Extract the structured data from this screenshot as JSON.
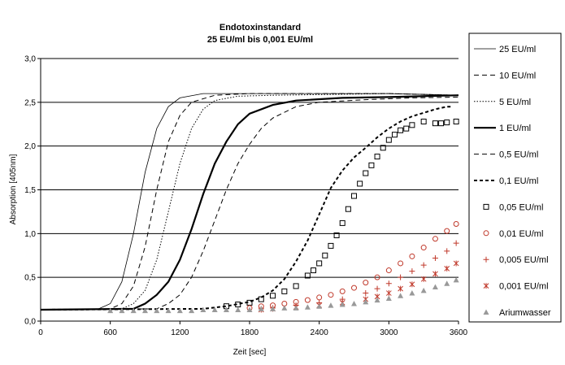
{
  "chart_data": {
    "type": "line",
    "title": "Endotoxinstandard",
    "subtitle": "25 EU/ml bis 0,001 EU/ml",
    "xlabel": "Zeit [sec]",
    "ylabel": "Absorption [405nm]",
    "xlim": [
      0,
      3600
    ],
    "ylim": [
      0,
      3.0
    ],
    "x_ticks": [
      "0",
      "600",
      "1200",
      "1800",
      "2400",
      "3000",
      "3600"
    ],
    "y_ticks": [
      "0,0",
      "0,5",
      "1,0",
      "1,5",
      "2,0",
      "2,5",
      "3,0"
    ],
    "grid": "horizontal",
    "legend_position": "right",
    "series": [
      {
        "name": "25 EU/ml",
        "style": "solid-thin",
        "points": [
          [
            0,
            0.13
          ],
          [
            500,
            0.14
          ],
          [
            600,
            0.2
          ],
          [
            700,
            0.45
          ],
          [
            800,
            1.0
          ],
          [
            900,
            1.7
          ],
          [
            1000,
            2.2
          ],
          [
            1100,
            2.45
          ],
          [
            1200,
            2.55
          ],
          [
            1400,
            2.6
          ],
          [
            1800,
            2.6
          ],
          [
            2400,
            2.6
          ],
          [
            3000,
            2.6
          ],
          [
            3600,
            2.58
          ]
        ]
      },
      {
        "name": "10 EU/ml",
        "style": "dash",
        "points": [
          [
            0,
            0.13
          ],
          [
            600,
            0.14
          ],
          [
            700,
            0.2
          ],
          [
            800,
            0.4
          ],
          [
            900,
            0.85
          ],
          [
            1000,
            1.5
          ],
          [
            1100,
            2.05
          ],
          [
            1200,
            2.35
          ],
          [
            1300,
            2.5
          ],
          [
            1500,
            2.58
          ],
          [
            1800,
            2.6
          ],
          [
            3000,
            2.6
          ],
          [
            3600,
            2.58
          ]
        ]
      },
      {
        "name": "5 EU/ml",
        "style": "dot",
        "points": [
          [
            0,
            0.13
          ],
          [
            700,
            0.14
          ],
          [
            800,
            0.2
          ],
          [
            900,
            0.35
          ],
          [
            1000,
            0.7
          ],
          [
            1100,
            1.25
          ],
          [
            1200,
            1.8
          ],
          [
            1300,
            2.2
          ],
          [
            1400,
            2.42
          ],
          [
            1500,
            2.52
          ],
          [
            1700,
            2.57
          ],
          [
            2000,
            2.58
          ],
          [
            3000,
            2.6
          ],
          [
            3600,
            2.58
          ]
        ]
      },
      {
        "name": "1 EU/ml",
        "style": "solid-thick",
        "points": [
          [
            0,
            0.13
          ],
          [
            800,
            0.14
          ],
          [
            900,
            0.2
          ],
          [
            1000,
            0.3
          ],
          [
            1100,
            0.45
          ],
          [
            1200,
            0.7
          ],
          [
            1300,
            1.05
          ],
          [
            1400,
            1.45
          ],
          [
            1500,
            1.8
          ],
          [
            1600,
            2.05
          ],
          [
            1700,
            2.25
          ],
          [
            1800,
            2.37
          ],
          [
            2000,
            2.47
          ],
          [
            2200,
            2.52
          ],
          [
            2600,
            2.55
          ],
          [
            3000,
            2.56
          ],
          [
            3600,
            2.58
          ]
        ]
      },
      {
        "name": "0,5 EU/ml",
        "style": "dash",
        "points": [
          [
            0,
            0.13
          ],
          [
            1000,
            0.14
          ],
          [
            1100,
            0.2
          ],
          [
            1200,
            0.3
          ],
          [
            1300,
            0.5
          ],
          [
            1400,
            0.8
          ],
          [
            1500,
            1.15
          ],
          [
            1600,
            1.5
          ],
          [
            1700,
            1.8
          ],
          [
            1800,
            2.02
          ],
          [
            1900,
            2.2
          ],
          [
            2000,
            2.32
          ],
          [
            2200,
            2.45
          ],
          [
            2400,
            2.5
          ],
          [
            2800,
            2.53
          ],
          [
            3200,
            2.55
          ],
          [
            3600,
            2.56
          ]
        ]
      },
      {
        "name": "0,1 EU/ml",
        "style": "dash-bold",
        "points": [
          [
            0,
            0.13
          ],
          [
            1400,
            0.14
          ],
          [
            1600,
            0.17
          ],
          [
            1800,
            0.22
          ],
          [
            1900,
            0.27
          ],
          [
            2000,
            0.35
          ],
          [
            2100,
            0.48
          ],
          [
            2200,
            0.68
          ],
          [
            2300,
            0.92
          ],
          [
            2400,
            1.22
          ],
          [
            2500,
            1.52
          ],
          [
            2600,
            1.72
          ],
          [
            2700,
            1.87
          ],
          [
            2800,
            1.98
          ],
          [
            2900,
            2.1
          ],
          [
            3000,
            2.2
          ],
          [
            3100,
            2.28
          ],
          [
            3200,
            2.34
          ],
          [
            3300,
            2.38
          ],
          [
            3400,
            2.42
          ],
          [
            3500,
            2.45
          ],
          [
            3550,
            2.45
          ]
        ]
      },
      {
        "name": "0,05 EU/ml",
        "marker": "open-square",
        "points": [
          [
            1600,
            0.17
          ],
          [
            1700,
            0.19
          ],
          [
            1800,
            0.21
          ],
          [
            1900,
            0.25
          ],
          [
            2000,
            0.29
          ],
          [
            2100,
            0.34
          ],
          [
            2200,
            0.4
          ],
          [
            2300,
            0.52
          ],
          [
            2350,
            0.58
          ],
          [
            2400,
            0.66
          ],
          [
            2450,
            0.75
          ],
          [
            2500,
            0.86
          ],
          [
            2550,
            0.98
          ],
          [
            2600,
            1.12
          ],
          [
            2650,
            1.28
          ],
          [
            2700,
            1.43
          ],
          [
            2750,
            1.57
          ],
          [
            2800,
            1.69
          ],
          [
            2850,
            1.78
          ],
          [
            2900,
            1.88
          ],
          [
            2950,
            1.98
          ],
          [
            3000,
            2.07
          ],
          [
            3050,
            2.13
          ],
          [
            3100,
            2.18
          ],
          [
            3150,
            2.2
          ],
          [
            3200,
            2.24
          ],
          [
            3300,
            2.28
          ],
          [
            3400,
            2.26
          ],
          [
            3450,
            2.26
          ],
          [
            3500,
            2.27
          ],
          [
            3580,
            2.28
          ]
        ]
      },
      {
        "name": "0,01 EU/ml",
        "marker": "open-circle",
        "points": [
          [
            1800,
            0.15
          ],
          [
            1900,
            0.17
          ],
          [
            2000,
            0.18
          ],
          [
            2100,
            0.2
          ],
          [
            2200,
            0.22
          ],
          [
            2300,
            0.24
          ],
          [
            2400,
            0.27
          ],
          [
            2500,
            0.3
          ],
          [
            2600,
            0.34
          ],
          [
            2700,
            0.38
          ],
          [
            2800,
            0.44
          ],
          [
            2900,
            0.5
          ],
          [
            3000,
            0.58
          ],
          [
            3100,
            0.66
          ],
          [
            3200,
            0.74
          ],
          [
            3300,
            0.84
          ],
          [
            3400,
            0.94
          ],
          [
            3500,
            1.03
          ],
          [
            3580,
            1.11
          ]
        ]
      },
      {
        "name": "0,005 EU/ml",
        "marker": "plus",
        "points": [
          [
            1900,
            0.14
          ],
          [
            2000,
            0.15
          ],
          [
            2200,
            0.18
          ],
          [
            2400,
            0.21
          ],
          [
            2600,
            0.25
          ],
          [
            2800,
            0.32
          ],
          [
            2900,
            0.37
          ],
          [
            3000,
            0.43
          ],
          [
            3100,
            0.5
          ],
          [
            3200,
            0.57
          ],
          [
            3300,
            0.64
          ],
          [
            3400,
            0.72
          ],
          [
            3500,
            0.8
          ],
          [
            3580,
            0.89
          ]
        ]
      },
      {
        "name": "0,001 EU/ml",
        "marker": "star",
        "points": [
          [
            1900,
            0.13
          ],
          [
            2000,
            0.14
          ],
          [
            2200,
            0.16
          ],
          [
            2400,
            0.18
          ],
          [
            2600,
            0.21
          ],
          [
            2800,
            0.25
          ],
          [
            2900,
            0.28
          ],
          [
            3000,
            0.32
          ],
          [
            3100,
            0.37
          ],
          [
            3200,
            0.42
          ],
          [
            3300,
            0.48
          ],
          [
            3400,
            0.54
          ],
          [
            3500,
            0.6
          ],
          [
            3580,
            0.66
          ]
        ]
      },
      {
        "name": "Ariumwasser",
        "marker": "filled-triangle",
        "points": [
          [
            600,
            0.12
          ],
          [
            700,
            0.12
          ],
          [
            800,
            0.12
          ],
          [
            900,
            0.12
          ],
          [
            1000,
            0.12
          ],
          [
            1100,
            0.12
          ],
          [
            1200,
            0.12
          ],
          [
            1300,
            0.12
          ],
          [
            1400,
            0.13
          ],
          [
            1500,
            0.13
          ],
          [
            1600,
            0.13
          ],
          [
            1700,
            0.13
          ],
          [
            1800,
            0.13
          ],
          [
            1900,
            0.14
          ],
          [
            2000,
            0.14
          ],
          [
            2100,
            0.15
          ],
          [
            2200,
            0.15
          ],
          [
            2300,
            0.16
          ],
          [
            2400,
            0.17
          ],
          [
            2500,
            0.18
          ],
          [
            2600,
            0.19
          ],
          [
            2700,
            0.2
          ],
          [
            2800,
            0.22
          ],
          [
            2900,
            0.24
          ],
          [
            3000,
            0.26
          ],
          [
            3100,
            0.29
          ],
          [
            3200,
            0.32
          ],
          [
            3300,
            0.35
          ],
          [
            3400,
            0.39
          ],
          [
            3500,
            0.43
          ],
          [
            3580,
            0.47
          ]
        ]
      }
    ]
  },
  "colors": {
    "line": "#000000",
    "marker_black": "#000000",
    "marker_red": "#c0392b",
    "marker_gray": "#999999",
    "grid": "#000000"
  }
}
